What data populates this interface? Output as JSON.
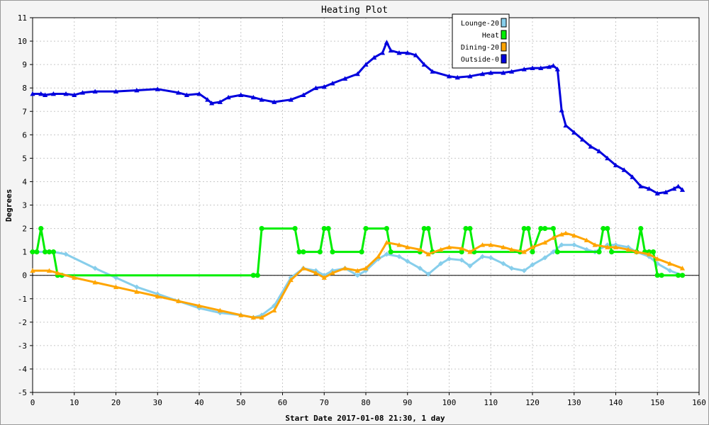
{
  "chart_data": {
    "type": "line",
    "title": "Heating Plot",
    "xlabel": "Start Date 2017-01-08 21:30, 1 day",
    "ylabel": "Degrees",
    "xlim": [
      0,
      160
    ],
    "ylim": [
      -5,
      11
    ],
    "x_ticks": [
      0,
      10,
      20,
      30,
      40,
      50,
      60,
      70,
      80,
      90,
      100,
      110,
      120,
      130,
      140,
      150,
      160
    ],
    "y_ticks": [
      -5,
      -4,
      -3,
      -2,
      -1,
      0,
      1,
      2,
      3,
      4,
      5,
      6,
      7,
      8,
      9,
      10,
      11
    ],
    "grid": true,
    "legend_position": "top-right",
    "series": [
      {
        "name": "Lounge-20",
        "color": "#87ceeb",
        "marker": "diamond",
        "x": [
          0,
          5,
          8,
          15,
          20,
          25,
          30,
          35,
          40,
          45,
          50,
          53,
          55,
          58,
          62,
          65,
          68,
          70,
          72,
          75,
          78,
          80,
          83,
          85,
          88,
          90,
          93,
          95,
          98,
          100,
          103,
          105,
          108,
          110,
          113,
          115,
          118,
          120,
          123,
          125,
          127,
          130,
          133,
          135,
          138,
          140,
          143,
          145,
          148,
          150,
          153,
          156
        ],
        "y": [
          1.0,
          1.0,
          0.9,
          0.3,
          -0.1,
          -0.5,
          -0.8,
          -1.1,
          -1.4,
          -1.6,
          -1.7,
          -1.8,
          -1.7,
          -1.3,
          -0.1,
          0.3,
          0.2,
          0.0,
          0.2,
          0.3,
          0.0,
          0.2,
          0.7,
          0.9,
          0.8,
          0.6,
          0.3,
          0.05,
          0.5,
          0.7,
          0.65,
          0.4,
          0.8,
          0.75,
          0.5,
          0.3,
          0.2,
          0.45,
          0.75,
          1.0,
          1.3,
          1.3,
          1.1,
          1.0,
          1.3,
          1.3,
          1.2,
          1.0,
          0.8,
          0.5,
          0.2,
          0.0
        ]
      },
      {
        "name": "Heat",
        "color": "#00ee00",
        "marker": "circle",
        "x": [
          0,
          1,
          2,
          3,
          4,
          5,
          6,
          7,
          53,
          54,
          55,
          63,
          64,
          65,
          69,
          70,
          71,
          72,
          79,
          80,
          85,
          86,
          93,
          94,
          95,
          96,
          103,
          104,
          105,
          106,
          117,
          118,
          119,
          120,
          122,
          123,
          125,
          126,
          136,
          137,
          138,
          139,
          145,
          146,
          147,
          148,
          149,
          150,
          151,
          155,
          156
        ],
        "y": [
          1,
          1,
          2,
          1,
          1,
          1,
          0,
          0,
          0,
          0,
          2,
          2,
          1,
          1,
          1,
          2,
          2,
          1,
          1,
          2,
          2,
          1,
          1,
          2,
          2,
          1,
          1,
          2,
          2,
          1,
          1,
          2,
          2,
          1,
          2,
          2,
          2,
          1,
          1,
          2,
          2,
          1,
          1,
          2,
          1,
          1,
          1,
          0,
          0,
          0,
          0
        ]
      },
      {
        "name": "Dining-20",
        "color": "#ffa500",
        "marker": "triangle",
        "x": [
          0,
          4,
          6,
          10,
          15,
          20,
          25,
          30,
          35,
          40,
          45,
          50,
          53,
          55,
          58,
          62,
          65,
          68,
          70,
          72,
          75,
          78,
          80,
          83,
          85,
          88,
          90,
          93,
          95,
          98,
          100,
          103,
          105,
          108,
          110,
          113,
          115,
          118,
          120,
          123,
          125,
          127,
          128,
          130,
          133,
          135,
          138,
          140,
          143,
          145,
          148,
          150,
          153,
          156
        ],
        "y": [
          0.2,
          0.2,
          0.1,
          -0.1,
          -0.3,
          -0.5,
          -0.7,
          -0.9,
          -1.1,
          -1.3,
          -1.5,
          -1.7,
          -1.8,
          -1.8,
          -1.5,
          -0.2,
          0.3,
          0.1,
          -0.1,
          0.1,
          0.3,
          0.2,
          0.3,
          0.8,
          1.4,
          1.3,
          1.2,
          1.1,
          0.9,
          1.1,
          1.2,
          1.15,
          1.0,
          1.3,
          1.3,
          1.2,
          1.1,
          1.0,
          1.2,
          1.4,
          1.6,
          1.75,
          1.8,
          1.7,
          1.5,
          1.3,
          1.2,
          1.2,
          1.1,
          1.0,
          0.9,
          0.7,
          0.5,
          0.3
        ]
      },
      {
        "name": "Outside-0",
        "color": "#0000dd",
        "marker": "triangle",
        "x": [
          0,
          2,
          3,
          5,
          8,
          10,
          12,
          15,
          20,
          25,
          30,
          35,
          37,
          40,
          42,
          43,
          45,
          47,
          50,
          53,
          55,
          58,
          62,
          65,
          68,
          70,
          72,
          75,
          78,
          80,
          82,
          84,
          85,
          86,
          88,
          90,
          92,
          94,
          96,
          100,
          102,
          105,
          108,
          110,
          113,
          115,
          118,
          120,
          122,
          124,
          125,
          126,
          127,
          128,
          130,
          132,
          134,
          136,
          138,
          140,
          142,
          144,
          146,
          148,
          150,
          152,
          154,
          155,
          156
        ],
        "y": [
          7.75,
          7.75,
          7.7,
          7.75,
          7.75,
          7.7,
          7.8,
          7.85,
          7.85,
          7.9,
          7.95,
          7.8,
          7.7,
          7.75,
          7.5,
          7.35,
          7.4,
          7.6,
          7.7,
          7.6,
          7.5,
          7.4,
          7.5,
          7.7,
          8.0,
          8.05,
          8.2,
          8.4,
          8.6,
          9.0,
          9.3,
          9.5,
          9.95,
          9.6,
          9.5,
          9.5,
          9.4,
          9.0,
          8.7,
          8.5,
          8.45,
          8.5,
          8.6,
          8.65,
          8.65,
          8.7,
          8.8,
          8.85,
          8.85,
          8.9,
          8.95,
          8.8,
          7.05,
          6.4,
          6.1,
          5.8,
          5.5,
          5.3,
          5.0,
          4.7,
          4.5,
          4.2,
          3.8,
          3.7,
          3.5,
          3.55,
          3.7,
          3.8,
          3.65
        ]
      }
    ]
  }
}
